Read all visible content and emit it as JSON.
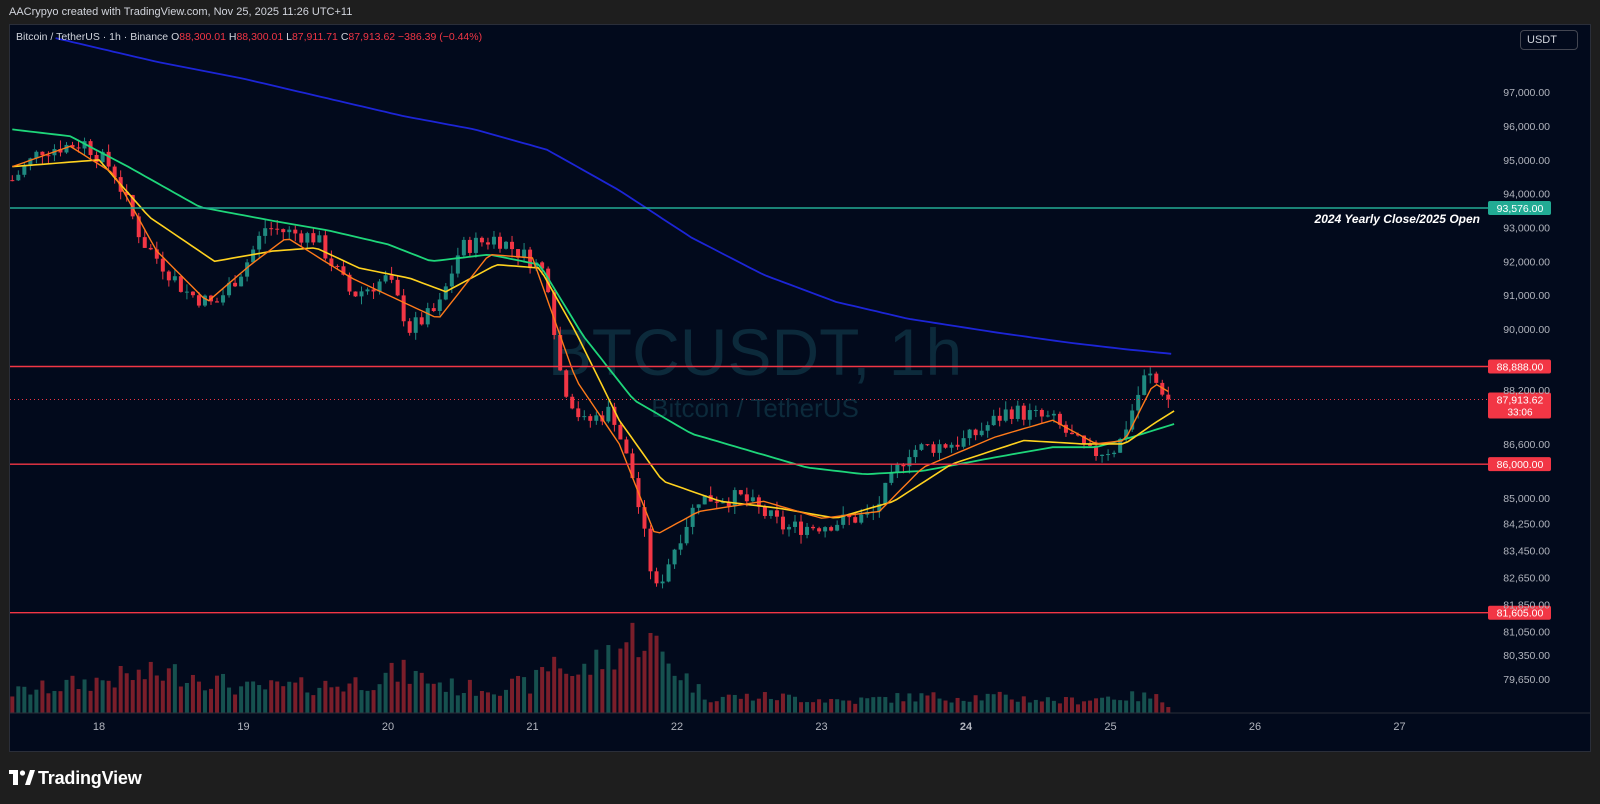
{
  "header": {
    "attribution": "AACrypyo created with TradingView.com, Nov 25, 2025 11:26 UTC+11"
  },
  "legend": {
    "symbol": "Bitcoin / TetherUS · 1h · Binance",
    "o_label": "O",
    "o_value": "88,300.01",
    "h_label": "H",
    "h_value": "88,300.01",
    "l_label": "L",
    "l_value": "87,911.71",
    "c_label": "C",
    "c_value": "87,913.62",
    "change": "−386.39 (−0.44%)"
  },
  "unit_button": "USDT",
  "watermark": {
    "line1": "BTCUSDT, 1h",
    "line2": "Bitcoin / TetherUS"
  },
  "footer": {
    "brand": "TradingView"
  },
  "colors": {
    "background": "#020a1c",
    "up": "#1f8a80",
    "down": "#f23645",
    "ema_fast": "#ff7a1a",
    "ema_mid": "#ffd21f",
    "ema_slow": "#1ed67a",
    "ma_long": "#1c25d6",
    "level_line": "#f23645",
    "yearly_line": "#22ab94"
  },
  "chart_data": {
    "type": "candlestick",
    "symbol": "BTCUSDT",
    "interval": "1h",
    "exchange": "Binance",
    "x_ticks": [
      "18",
      "19",
      "20",
      "21",
      "22",
      "23",
      "24",
      "25",
      "26",
      "27"
    ],
    "y_ticks": [
      "97,000.00",
      "96,000.00",
      "95,000.00",
      "94,000.00",
      "93,000.00",
      "92,000.00",
      "91,000.00",
      "90,000.00",
      "88,200.00",
      "86,600.00",
      "85,000.00",
      "84,250.00",
      "83,450.00",
      "82,650.00",
      "81,850.00",
      "81,050.00",
      "80,350.00",
      "79,650.00"
    ],
    "price_levels": [
      {
        "label": "93,576.00",
        "value": 93576,
        "note": "2024 Yearly Close/2025 Open",
        "kind": "yearly"
      },
      {
        "label": "88,888.00",
        "value": 88888,
        "kind": "level"
      },
      {
        "label": "86,000.00",
        "value": 86000,
        "kind": "level"
      },
      {
        "label": "81,605.00",
        "value": 81605,
        "kind": "level"
      }
    ],
    "last_price": {
      "label": "87,913.62",
      "value": 87913.62,
      "countdown": "33:06"
    },
    "candles_daily_path": [
      [
        17.4,
        94400
      ],
      [
        17.6,
        95300
      ],
      [
        17.9,
        95500
      ],
      [
        18.1,
        94700
      ],
      [
        18.3,
        92600
      ],
      [
        18.6,
        91100
      ],
      [
        18.8,
        90700
      ],
      [
        19.0,
        91800
      ],
      [
        19.15,
        93000
      ],
      [
        19.5,
        92700
      ],
      [
        19.75,
        91000
      ],
      [
        20.0,
        91500
      ],
      [
        20.15,
        90000
      ],
      [
        20.35,
        90600
      ],
      [
        20.5,
        92400
      ],
      [
        20.75,
        92700
      ],
      [
        21.0,
        92000
      ],
      [
        21.1,
        91600
      ],
      [
        21.2,
        88500
      ],
      [
        21.35,
        87200
      ],
      [
        21.55,
        87600
      ],
      [
        21.7,
        85500
      ],
      [
        21.85,
        82200
      ],
      [
        22.0,
        83700
      ],
      [
        22.15,
        85000
      ],
      [
        22.45,
        85000
      ],
      [
        22.75,
        84100
      ],
      [
        23.0,
        84200
      ],
      [
        23.35,
        84500
      ],
      [
        23.6,
        86400
      ],
      [
        24.0,
        86700
      ],
      [
        24.3,
        87600
      ],
      [
        24.6,
        87300
      ],
      [
        24.85,
        86300
      ],
      [
        25.05,
        86500
      ],
      [
        25.25,
        88700
      ],
      [
        25.42,
        87914
      ]
    ],
    "ema_fast_path": [
      [
        17.4,
        94800
      ],
      [
        17.8,
        95400
      ],
      [
        18.1,
        94600
      ],
      [
        18.4,
        92300
      ],
      [
        18.75,
        90800
      ],
      [
        19.05,
        91900
      ],
      [
        19.3,
        92700
      ],
      [
        19.75,
        91500
      ],
      [
        20.1,
        90800
      ],
      [
        20.35,
        90300
      ],
      [
        20.7,
        92200
      ],
      [
        21.0,
        92100
      ],
      [
        21.3,
        88500
      ],
      [
        21.6,
        86600
      ],
      [
        21.85,
        83900
      ],
      [
        22.15,
        84600
      ],
      [
        22.6,
        84900
      ],
      [
        23.0,
        84400
      ],
      [
        23.4,
        84600
      ],
      [
        23.7,
        85900
      ],
      [
        24.2,
        86800
      ],
      [
        24.6,
        87300
      ],
      [
        24.9,
        86600
      ],
      [
        25.1,
        86700
      ],
      [
        25.3,
        88400
      ],
      [
        25.42,
        88100
      ]
    ],
    "ema_mid_path": [
      [
        17.4,
        94800
      ],
      [
        18.0,
        95000
      ],
      [
        18.35,
        93300
      ],
      [
        18.8,
        92000
      ],
      [
        19.2,
        92300
      ],
      [
        19.5,
        92400
      ],
      [
        19.8,
        91800
      ],
      [
        20.15,
        91500
      ],
      [
        20.4,
        91100
      ],
      [
        20.75,
        91900
      ],
      [
        21.05,
        91800
      ],
      [
        21.3,
        89900
      ],
      [
        21.6,
        87300
      ],
      [
        21.9,
        85500
      ],
      [
        22.3,
        84900
      ],
      [
        22.7,
        84700
      ],
      [
        23.1,
        84400
      ],
      [
        23.5,
        84900
      ],
      [
        23.9,
        86000
      ],
      [
        24.4,
        86700
      ],
      [
        24.8,
        86600
      ],
      [
        25.1,
        86600
      ],
      [
        25.3,
        87200
      ],
      [
        25.45,
        87600
      ]
    ],
    "ema_slow_path": [
      [
        17.4,
        95900
      ],
      [
        17.8,
        95700
      ],
      [
        18.2,
        94800
      ],
      [
        18.7,
        93600
      ],
      [
        19.2,
        93200
      ],
      [
        19.6,
        92900
      ],
      [
        20.0,
        92500
      ],
      [
        20.3,
        92000
      ],
      [
        20.7,
        92200
      ],
      [
        21.05,
        91900
      ],
      [
        21.35,
        89800
      ],
      [
        21.7,
        87900
      ],
      [
        22.1,
        86900
      ],
      [
        22.5,
        86400
      ],
      [
        22.9,
        85900
      ],
      [
        23.3,
        85700
      ],
      [
        23.7,
        85800
      ],
      [
        24.2,
        86200
      ],
      [
        24.6,
        86500
      ],
      [
        24.9,
        86500
      ],
      [
        25.15,
        86800
      ],
      [
        25.45,
        87200
      ]
    ],
    "ma_long_path": [
      [
        17.7,
        98600
      ],
      [
        18.4,
        97900
      ],
      [
        19.0,
        97400
      ],
      [
        19.6,
        96800
      ],
      [
        20.1,
        96300
      ],
      [
        20.6,
        95900
      ],
      [
        21.1,
        95300
      ],
      [
        21.6,
        94100
      ],
      [
        22.1,
        92700
      ],
      [
        22.6,
        91600
      ],
      [
        23.1,
        90800
      ],
      [
        23.6,
        90300
      ],
      [
        24.2,
        89900
      ],
      [
        24.7,
        89600
      ],
      [
        25.1,
        89400
      ],
      [
        25.45,
        89250
      ]
    ],
    "volume_relative_path": [
      [
        17.4,
        0.25
      ],
      [
        18.2,
        0.45
      ],
      [
        18.6,
        0.5
      ],
      [
        19.0,
        0.3
      ],
      [
        19.7,
        0.35
      ],
      [
        20.1,
        0.5
      ],
      [
        20.5,
        0.3
      ],
      [
        21.0,
        0.35
      ],
      [
        21.15,
        0.68
      ],
      [
        21.3,
        0.45
      ],
      [
        21.75,
        1.0
      ],
      [
        21.95,
        0.62
      ],
      [
        22.2,
        0.2
      ],
      [
        22.7,
        0.2
      ],
      [
        23.2,
        0.15
      ],
      [
        23.6,
        0.2
      ],
      [
        24.2,
        0.2
      ],
      [
        24.7,
        0.15
      ],
      [
        25.0,
        0.2
      ],
      [
        25.3,
        0.2
      ],
      [
        25.45,
        0.07
      ]
    ]
  }
}
